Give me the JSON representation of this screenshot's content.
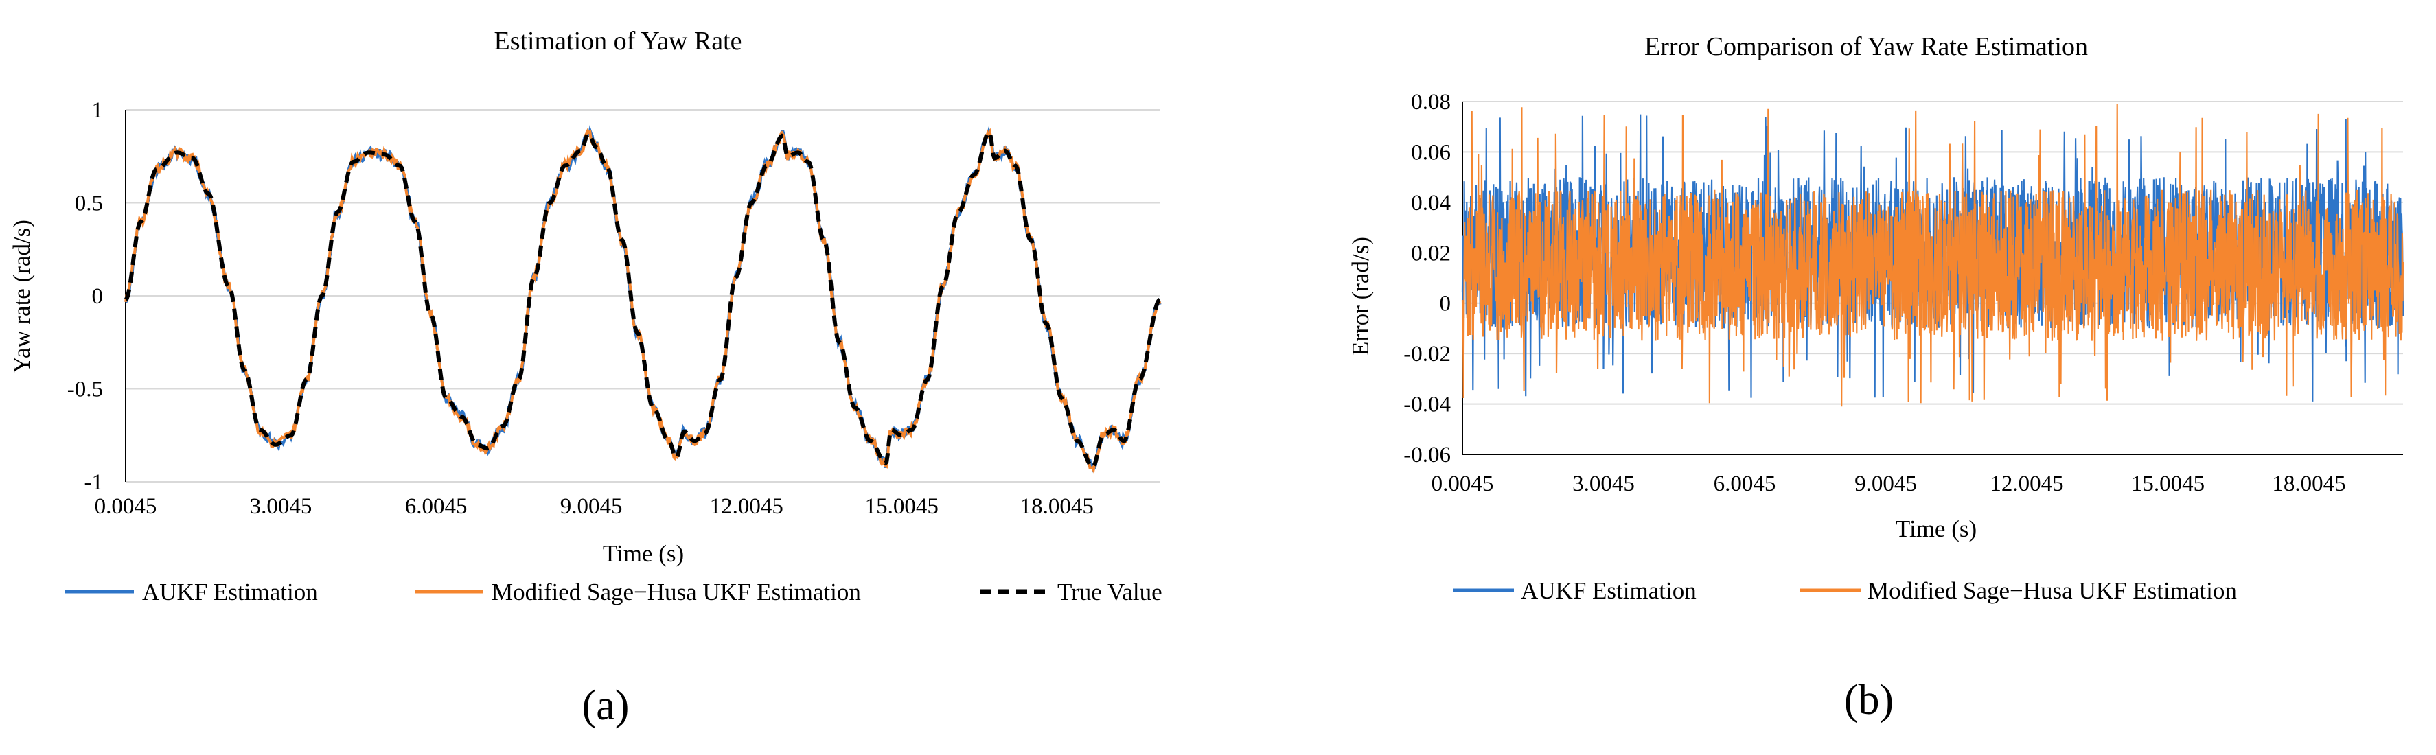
{
  "panels": {
    "a": {
      "label": "(a)",
      "legend": [
        "AUKF Estimation",
        "Modified Sage−Husa UKF Estimation",
        "True Value"
      ]
    },
    "b": {
      "label": "(b)",
      "legend": [
        "AUKF Estimation",
        "Modified Sage−Husa UKF Estimation"
      ]
    }
  },
  "colors": {
    "aukf": "#2E75C8",
    "sage_husa": "#F5862F",
    "true_value": "#000000",
    "grid": "#d9d9d9"
  },
  "chart_data": [
    {
      "type": "line",
      "title": "Estimation of Yaw Rate",
      "xlabel": "Time (s)",
      "ylabel": "Yaw rate (rad/s)",
      "xlim": [
        0.0045,
        20.0045
      ],
      "ylim": [
        -1,
        1
      ],
      "x_ticks": [
        0.0045,
        3.0045,
        6.0045,
        9.0045,
        12.0045,
        15.0045,
        18.0045
      ],
      "x_tick_labels": [
        "0.0045",
        "3.0045",
        "6.0045",
        "9.0045",
        "12.0045",
        "15.0045",
        "18.0045"
      ],
      "y_ticks": [
        -1,
        -0.5,
        0,
        0.5,
        1
      ],
      "y_tick_labels": [
        "-1",
        "-0.5",
        "0",
        "0.5",
        "1"
      ],
      "grid": "horizontal",
      "legend_position": "bottom",
      "x": [
        0.0045,
        0.3,
        0.6,
        1.0,
        1.3,
        1.6,
        2.0,
        2.3,
        2.6,
        2.9,
        3.2,
        3.5,
        3.8,
        4.1,
        4.4,
        4.7,
        5.0,
        5.3,
        5.6,
        5.9,
        6.2,
        6.5,
        6.8,
        7.0,
        7.3,
        7.6,
        7.9,
        8.2,
        8.5,
        8.8,
        8.95,
        9.1,
        9.3,
        9.6,
        9.9,
        10.2,
        10.5,
        10.65,
        10.8,
        11.0,
        11.2,
        11.5,
        11.8,
        12.1,
        12.4,
        12.7,
        12.8,
        13.0,
        13.2,
        13.5,
        13.8,
        14.1,
        14.4,
        14.7,
        14.8,
        15.0,
        15.2,
        15.5,
        15.8,
        16.1,
        16.4,
        16.7,
        16.8,
        17.0,
        17.2,
        17.5,
        17.8,
        18.1,
        18.4,
        18.7,
        18.9,
        19.1,
        19.3,
        19.6,
        20.0
      ],
      "series": [
        {
          "name": "True Value",
          "values": [
            -0.02,
            0.4,
            0.68,
            0.77,
            0.74,
            0.55,
            0.05,
            -0.4,
            -0.72,
            -0.8,
            -0.75,
            -0.45,
            0.0,
            0.45,
            0.72,
            0.77,
            0.76,
            0.7,
            0.4,
            -0.1,
            -0.55,
            -0.65,
            -0.8,
            -0.82,
            -0.7,
            -0.45,
            0.1,
            0.5,
            0.7,
            0.78,
            0.87,
            0.8,
            0.7,
            0.3,
            -0.2,
            -0.6,
            -0.78,
            -0.87,
            -0.73,
            -0.78,
            -0.74,
            -0.45,
            0.1,
            0.5,
            0.7,
            0.86,
            0.75,
            0.77,
            0.72,
            0.3,
            -0.25,
            -0.6,
            -0.78,
            -0.9,
            -0.72,
            -0.75,
            -0.72,
            -0.45,
            0.05,
            0.45,
            0.65,
            0.88,
            0.74,
            0.78,
            0.7,
            0.3,
            -0.15,
            -0.55,
            -0.78,
            -0.92,
            -0.75,
            -0.72,
            -0.78,
            -0.45,
            -0.02
          ]
        },
        {
          "name": "AUKF Estimation",
          "noise": 0.03
        },
        {
          "name": "Modified Sage−Husa UKF Estimation",
          "noise": 0.025
        }
      ]
    },
    {
      "type": "line",
      "title": "Error Comparison of Yaw Rate Estimation",
      "xlabel": "Time (s)",
      "ylabel": "Error (rad/s)",
      "xlim": [
        0.0045,
        20.0045
      ],
      "ylim": [
        -0.06,
        0.08
      ],
      "x_ticks": [
        0.0045,
        3.0045,
        6.0045,
        9.0045,
        12.0045,
        15.0045,
        18.0045
      ],
      "x_tick_labels": [
        "0.0045",
        "3.0045",
        "6.0045",
        "9.0045",
        "12.0045",
        "15.0045",
        "18.0045"
      ],
      "y_ticks": [
        -0.06,
        -0.04,
        -0.02,
        0,
        0.02,
        0.04,
        0.06,
        0.08
      ],
      "y_tick_labels": [
        "-0.06",
        "-0.04",
        "-0.02",
        "0",
        "0.02",
        "0.04",
        "0.06",
        "0.08"
      ],
      "grid": "horizontal",
      "legend_position": "bottom",
      "series": [
        {
          "name": "AUKF Estimation",
          "mean": 0.018,
          "band": [
            -0.01,
            0.05
          ],
          "min": -0.04,
          "max": 0.075
        },
        {
          "name": "Modified Sage−Husa UKF Estimation",
          "mean": 0.015,
          "band": [
            -0.015,
            0.045
          ],
          "min": -0.042,
          "max": 0.08
        }
      ]
    }
  ]
}
